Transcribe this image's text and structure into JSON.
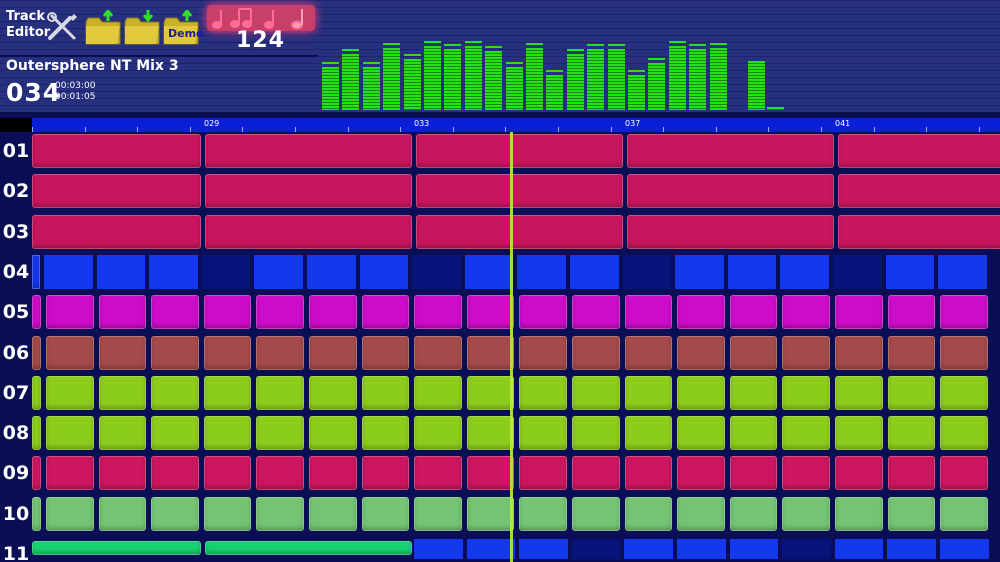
{
  "header": {
    "editor_title": "Track\nEditor",
    "editor_line1": "Track",
    "editor_line2": "Editor",
    "demo_label": "Demo",
    "tempo": "124",
    "song_title": "Outersphere NT Mix 3",
    "bar_number": "034",
    "time_1": "00:03:00",
    "time_2": "00:01:05"
  },
  "icons": {
    "tools": "tools-icon",
    "open_folder": "folder-open-icon",
    "save_folder": "folder-save-icon",
    "demo_folder": "folder-demo-icon",
    "notes": "music-notes-icon"
  },
  "meter_levels": [
    0.55,
    0.72,
    0.55,
    0.8,
    0.66,
    0.82,
    0.78,
    0.82,
    0.75,
    0.55,
    0.8,
    0.45,
    0.72,
    0.78,
    0.78,
    0.45,
    0.6,
    0.82,
    0.78,
    0.8
  ],
  "mini_meter_levels": [
    0.45,
    0.03
  ],
  "ruler": {
    "markers": [
      "029",
      "033",
      "037",
      "041"
    ]
  },
  "tracks": [
    {
      "label": "01",
      "color": "#c8155e",
      "pattern": "long"
    },
    {
      "label": "02",
      "color": "#c8155e",
      "pattern": "long"
    },
    {
      "label": "03",
      "color": "#c8155e",
      "pattern": "long"
    },
    {
      "label": "04",
      "color": "#1437f0",
      "pattern": "blocks"
    },
    {
      "label": "05",
      "color": "#cc0cc8",
      "pattern": "short"
    },
    {
      "label": "06",
      "color": "#a34a4a",
      "pattern": "short"
    },
    {
      "label": "07",
      "color": "#8ccc1a",
      "pattern": "short"
    },
    {
      "label": "08",
      "color": "#8ccc1a",
      "pattern": "short"
    },
    {
      "label": "09",
      "color": "#cc1660",
      "pattern": "short"
    },
    {
      "label": "10",
      "color": "#74c474",
      "pattern": "short"
    },
    {
      "label": "11",
      "color": "#18d070",
      "pattern": "partial"
    }
  ],
  "colors": {
    "background": "#0a0f55",
    "header": "#26307e",
    "ruler": "#0b1fd8",
    "meter_green": "#27e01a",
    "playhead": "#b8ee3a"
  }
}
